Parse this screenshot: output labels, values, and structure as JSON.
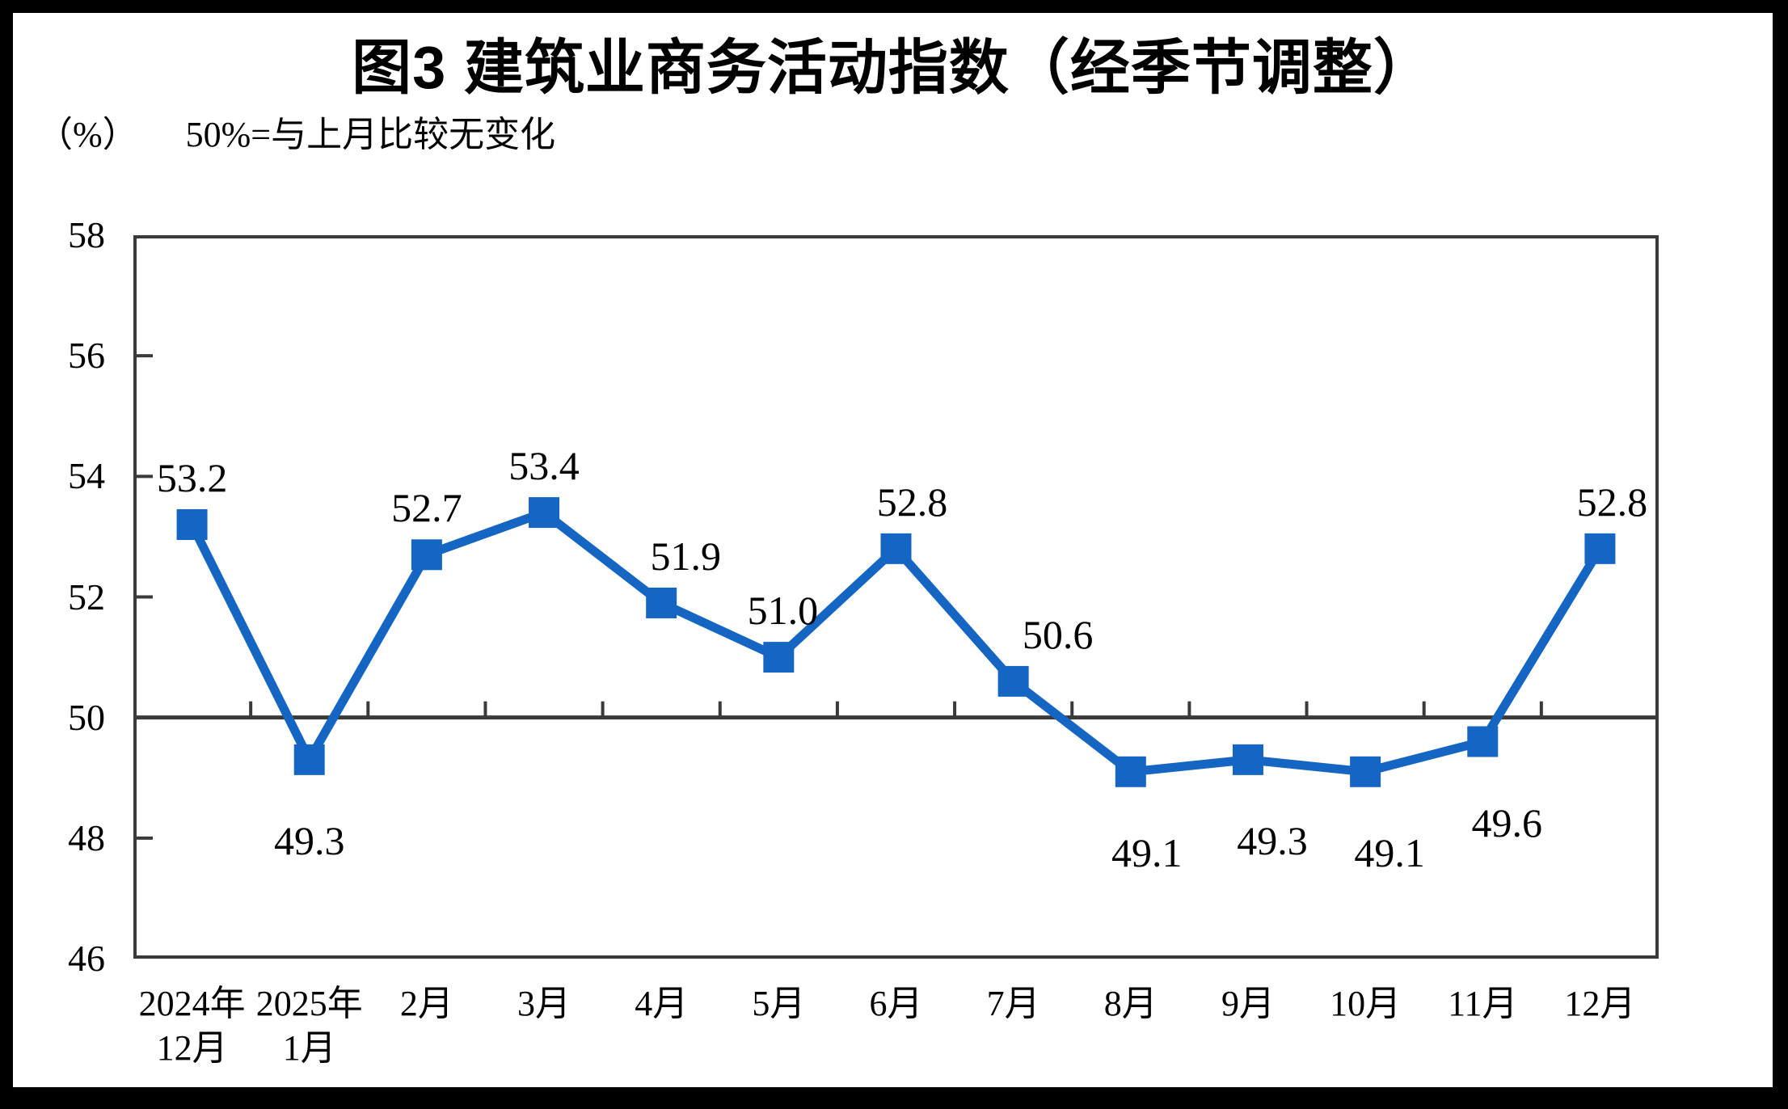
{
  "page": {
    "title": "图3  建筑业商务活动指数（经季节调整）",
    "unit_label": "（%）",
    "baseline_note": "50%=与上月比较无变化"
  },
  "chart_data": {
    "type": "line",
    "title": "图3 建筑业商务活动指数（经季节调整）",
    "subtitle": "50%=与上月比较无变化",
    "unit": "（%）",
    "xlabel": "",
    "ylabel": "（%）",
    "ylim": [
      46,
      58
    ],
    "ytick_interval": 2,
    "yticks": [
      58,
      56,
      54,
      52,
      50,
      48,
      46
    ],
    "baseline_value": 50,
    "grid": "off",
    "legend": "none",
    "axis_color": "#3a3a3a",
    "categories": [
      "2024年\n12月",
      "2025年\n1月",
      "2月",
      "3月",
      "4月",
      "5月",
      "6月",
      "7月",
      "8月",
      "9月",
      "10月",
      "11月",
      "12月"
    ],
    "series": [
      {
        "name": "建筑业商务活动指数",
        "color": "#1565C3",
        "marker": "square",
        "values": [
          53.2,
          49.3,
          52.7,
          53.4,
          51.9,
          51.0,
          52.8,
          50.6,
          49.1,
          49.3,
          49.1,
          49.6,
          52.8
        ],
        "label_positions": [
          "above",
          "below",
          "above",
          "above",
          "above",
          "above",
          "above",
          "above",
          "below",
          "below",
          "below",
          "below",
          "above"
        ],
        "label_dx": [
          0,
          0,
          0,
          0,
          30,
          5,
          20,
          55,
          20,
          30,
          30,
          30,
          15
        ]
      }
    ]
  }
}
